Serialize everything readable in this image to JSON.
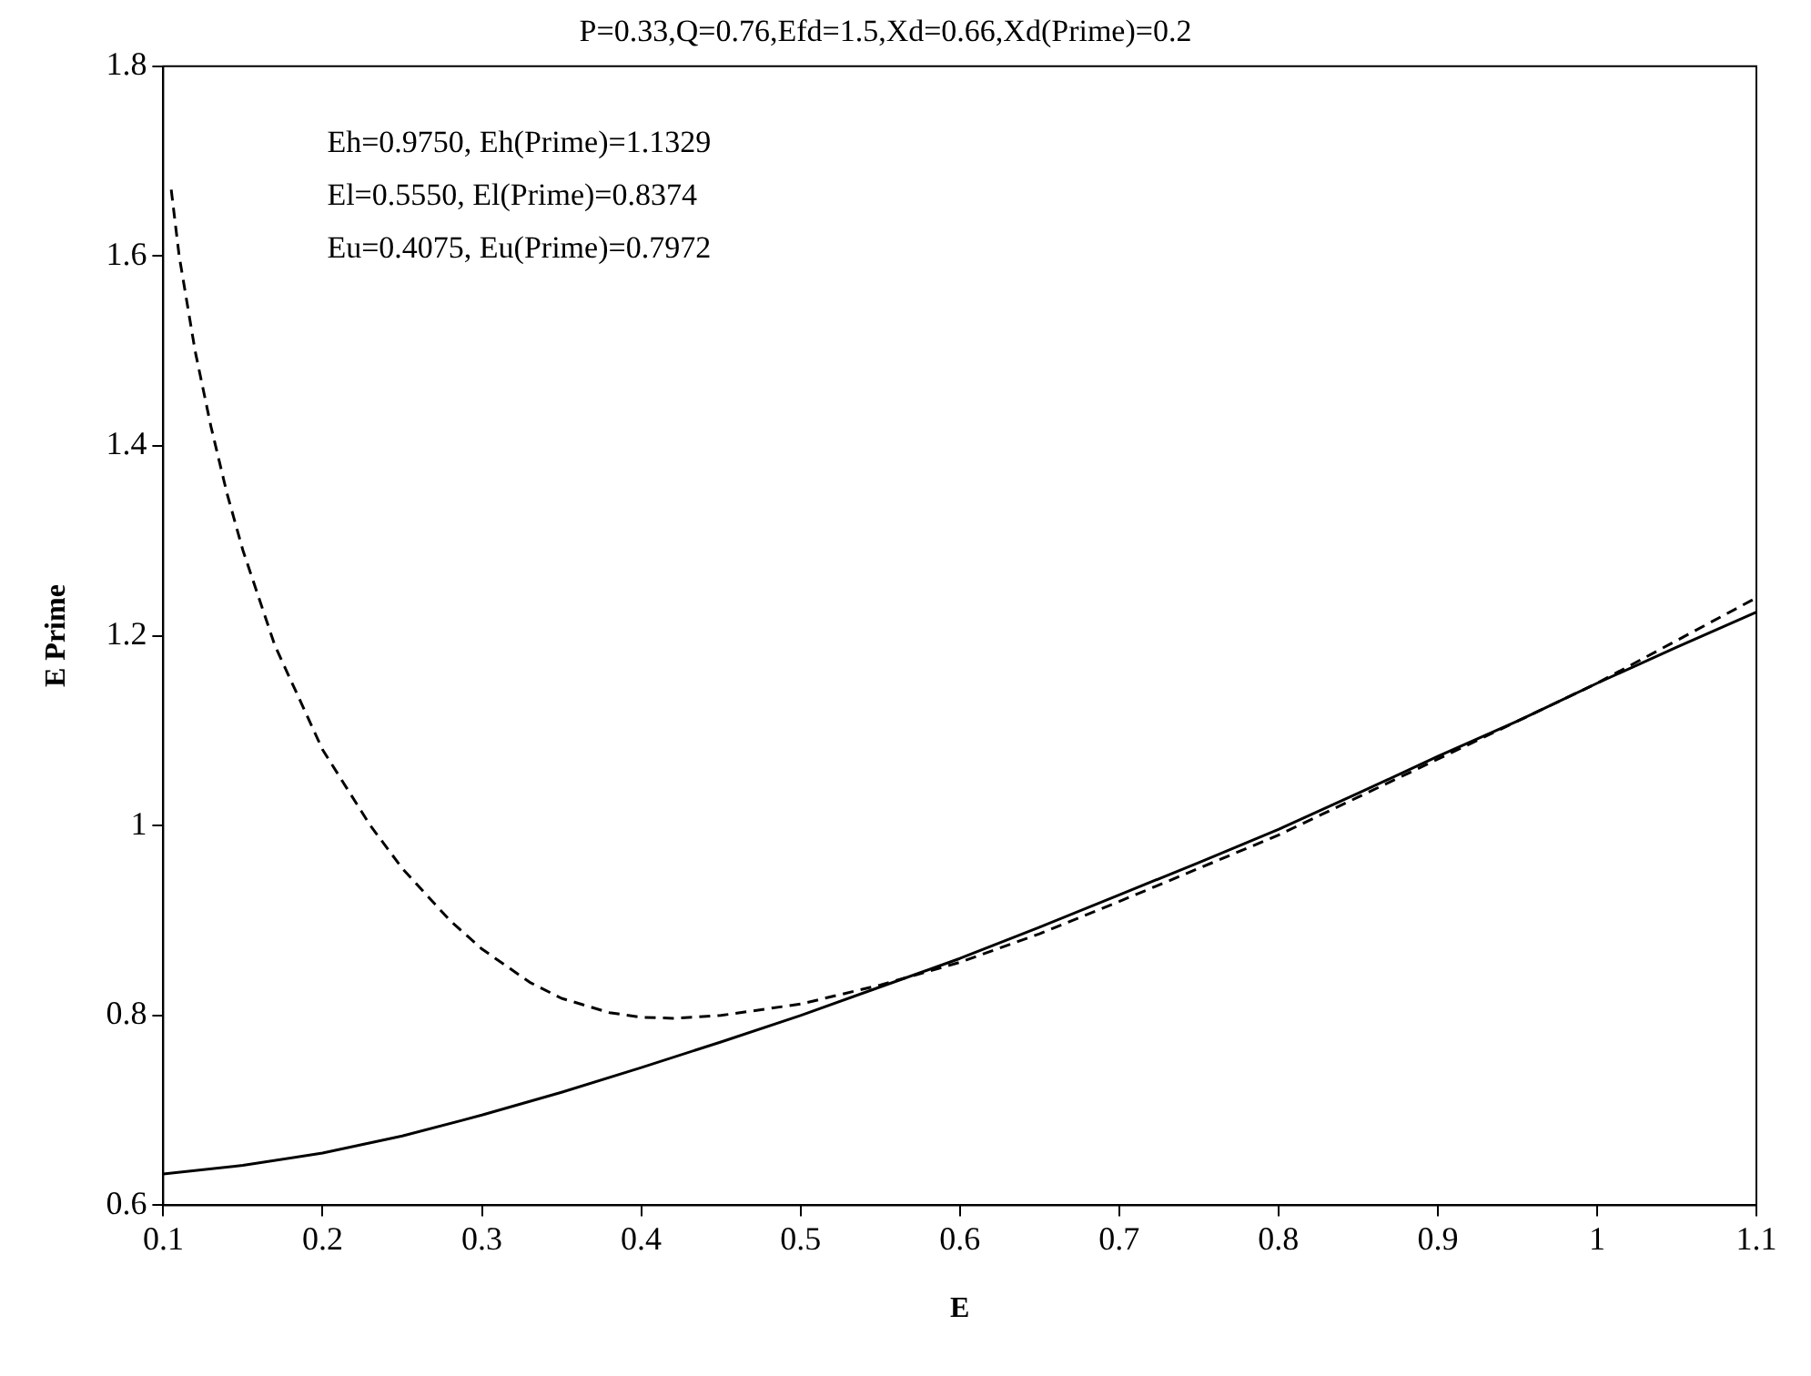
{
  "chart_data": {
    "type": "line",
    "title": "P=0.33,Q=0.76,Efd=1.5,Xd=0.66,Xd(Prime)=0.2",
    "xlabel": "E",
    "ylabel": "E Prime",
    "annotations": [
      "Eh=0.9750, Eh(Prime)=1.1329",
      "El=0.5550, El(Prime)=0.8374",
      "Eu=0.4075, Eu(Prime)=0.7972"
    ],
    "xlim": [
      0.1,
      1.1
    ],
    "xticks": [
      0.1,
      0.2,
      0.3,
      0.4,
      0.5,
      0.6,
      0.7,
      0.8,
      0.9,
      {
        "value": 1,
        "label": "1"
      },
      1.1
    ],
    "ylim": [
      0.6,
      1.8
    ],
    "yticks": [
      0.6,
      0.8,
      {
        "value": 1,
        "label": "1"
      },
      1.2,
      1.4,
      1.6,
      1.8
    ],
    "grid": false,
    "legend": false,
    "marker": "none",
    "series": [
      {
        "color": "#000000",
        "line_style": "solid",
        "x": [
          0.1,
          0.15,
          0.2,
          0.25,
          0.3,
          0.35,
          0.4,
          0.45,
          0.5,
          0.55,
          0.6,
          0.65,
          0.7,
          0.75,
          0.8,
          0.85,
          0.9,
          0.95,
          1.0,
          1.05,
          1.1
        ],
        "values": [
          0.633,
          0.642,
          0.655,
          0.673,
          0.695,
          0.719,
          0.745,
          0.772,
          0.8,
          0.83,
          0.86,
          0.893,
          0.927,
          0.961,
          0.996,
          1.034,
          1.073,
          1.11,
          1.15,
          1.188,
          1.225
        ]
      },
      {
        "color": "#000000",
        "line_style": "dashed",
        "x": [
          0.105,
          0.11,
          0.12,
          0.13,
          0.14,
          0.15,
          0.17,
          0.2,
          0.23,
          0.25,
          0.28,
          0.3,
          0.33,
          0.35,
          0.38,
          0.4,
          0.42,
          0.45,
          0.5,
          0.55,
          0.6,
          0.65,
          0.7,
          0.75,
          0.8,
          0.85,
          0.9,
          0.95,
          1.0,
          1.05,
          1.1
        ],
        "values": [
          1.67,
          1.6,
          1.5,
          1.42,
          1.35,
          1.29,
          1.19,
          1.08,
          1.0,
          0.955,
          0.9,
          0.87,
          0.835,
          0.818,
          0.803,
          0.798,
          0.797,
          0.8,
          0.812,
          0.832,
          0.856,
          0.886,
          0.92,
          0.955,
          0.99,
          1.03,
          1.07,
          1.11,
          1.15,
          1.195,
          1.24
        ]
      }
    ]
  }
}
